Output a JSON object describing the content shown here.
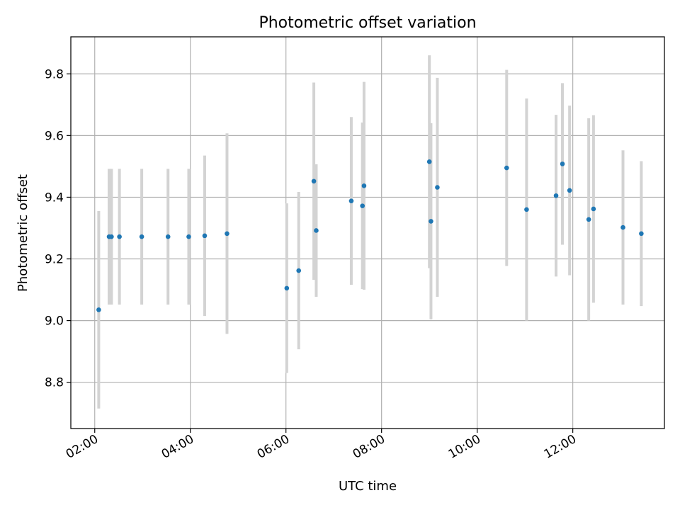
{
  "chart_data": {
    "type": "scatter",
    "title": "Photometric offset variation",
    "xlabel": "UTC time",
    "ylabel": "Photometric offset",
    "xlim": [
      "01:30",
      "13:55"
    ],
    "ylim": [
      8.65,
      9.92
    ],
    "x_ticks": [
      "02:00",
      "04:00",
      "06:00",
      "08:00",
      "10:00",
      "12:00"
    ],
    "y_ticks": [
      "8.8",
      "9.0",
      "9.2",
      "9.4",
      "9.6",
      "9.8"
    ],
    "grid": true,
    "colors": {
      "point": "#1f77b4",
      "errorbar": "#d3d3d3",
      "grid": "#b0b0b0"
    },
    "points": [
      {
        "x": "02:05",
        "y": 9.035,
        "err": 0.32
      },
      {
        "x": "02:18",
        "y": 9.272,
        "err": 0.22
      },
      {
        "x": "02:21",
        "y": 9.272,
        "err": 0.22
      },
      {
        "x": "02:31",
        "y": 9.272,
        "err": 0.22
      },
      {
        "x": "02:59",
        "y": 9.272,
        "err": 0.22
      },
      {
        "x": "03:32",
        "y": 9.272,
        "err": 0.22
      },
      {
        "x": "03:58",
        "y": 9.272,
        "err": 0.22
      },
      {
        "x": "04:18",
        "y": 9.275,
        "err": 0.26
      },
      {
        "x": "04:46",
        "y": 9.282,
        "err": 0.325
      },
      {
        "x": "06:01",
        "y": 9.105,
        "err": 0.275
      },
      {
        "x": "06:16",
        "y": 9.162,
        "err": 0.255
      },
      {
        "x": "06:35",
        "y": 9.452,
        "err": 0.32
      },
      {
        "x": "06:38",
        "y": 9.292,
        "err": 0.215
      },
      {
        "x": "07:22",
        "y": 9.388,
        "err": 0.272
      },
      {
        "x": "07:36",
        "y": 9.372,
        "err": 0.27
      },
      {
        "x": "07:38",
        "y": 9.437,
        "err": 0.337
      },
      {
        "x": "09:00",
        "y": 9.515,
        "err": 0.345
      },
      {
        "x": "09:02",
        "y": 9.322,
        "err": 0.318
      },
      {
        "x": "09:10",
        "y": 9.432,
        "err": 0.355
      },
      {
        "x": "10:37",
        "y": 9.495,
        "err": 0.318
      },
      {
        "x": "11:02",
        "y": 9.36,
        "err": 0.36
      },
      {
        "x": "11:39",
        "y": 9.405,
        "err": 0.262
      },
      {
        "x": "11:47",
        "y": 9.508,
        "err": 0.262
      },
      {
        "x": "11:56",
        "y": 9.422,
        "err": 0.275
      },
      {
        "x": "12:20",
        "y": 9.328,
        "err": 0.328
      },
      {
        "x": "12:26",
        "y": 9.362,
        "err": 0.304
      },
      {
        "x": "13:03",
        "y": 9.302,
        "err": 0.25
      },
      {
        "x": "13:26",
        "y": 9.282,
        "err": 0.235
      }
    ]
  }
}
